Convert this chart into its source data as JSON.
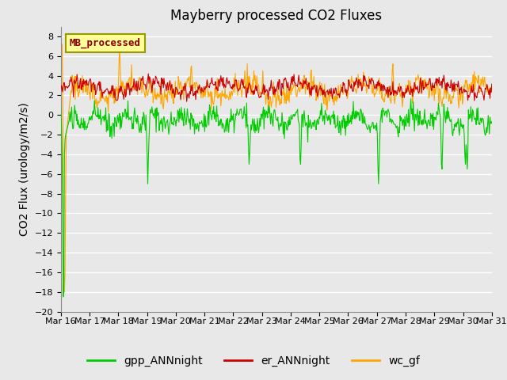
{
  "title": "Mayberry processed CO2 Fluxes",
  "ylabel": "CO2 Flux (urology/m2/s)",
  "ylim": [
    -20,
    9
  ],
  "yticks": [
    -20,
    -18,
    -16,
    -14,
    -12,
    -10,
    -8,
    -6,
    -4,
    -2,
    0,
    2,
    4,
    6,
    8
  ],
  "xlabels": [
    "Mar 16",
    "Mar 17",
    "Mar 18",
    "Mar 19",
    "Mar 20",
    "Mar 21",
    "Mar 22",
    "Mar 23",
    "Mar 24",
    "Mar 25",
    "Mar 26",
    "Mar 27",
    "Mar 28",
    "Mar 29",
    "Mar 30",
    "Mar 31"
  ],
  "annotation_text": "MB_processed",
  "annotation_color": "#8B0000",
  "annotation_bg": "#FFFF99",
  "annotation_edge": "#999900",
  "plot_bg_color": "#E8E8E8",
  "fig_bg_color": "#E8E8E8",
  "line_colors": {
    "gpp": "#00CC00",
    "er": "#CC0000",
    "wc": "#FFA500"
  },
  "legend_labels": [
    "gpp_ANNnight",
    "er_ANNnight",
    "wc_gf"
  ],
  "title_fontsize": 12,
  "axis_label_fontsize": 10,
  "tick_fontsize": 8,
  "legend_fontsize": 10
}
